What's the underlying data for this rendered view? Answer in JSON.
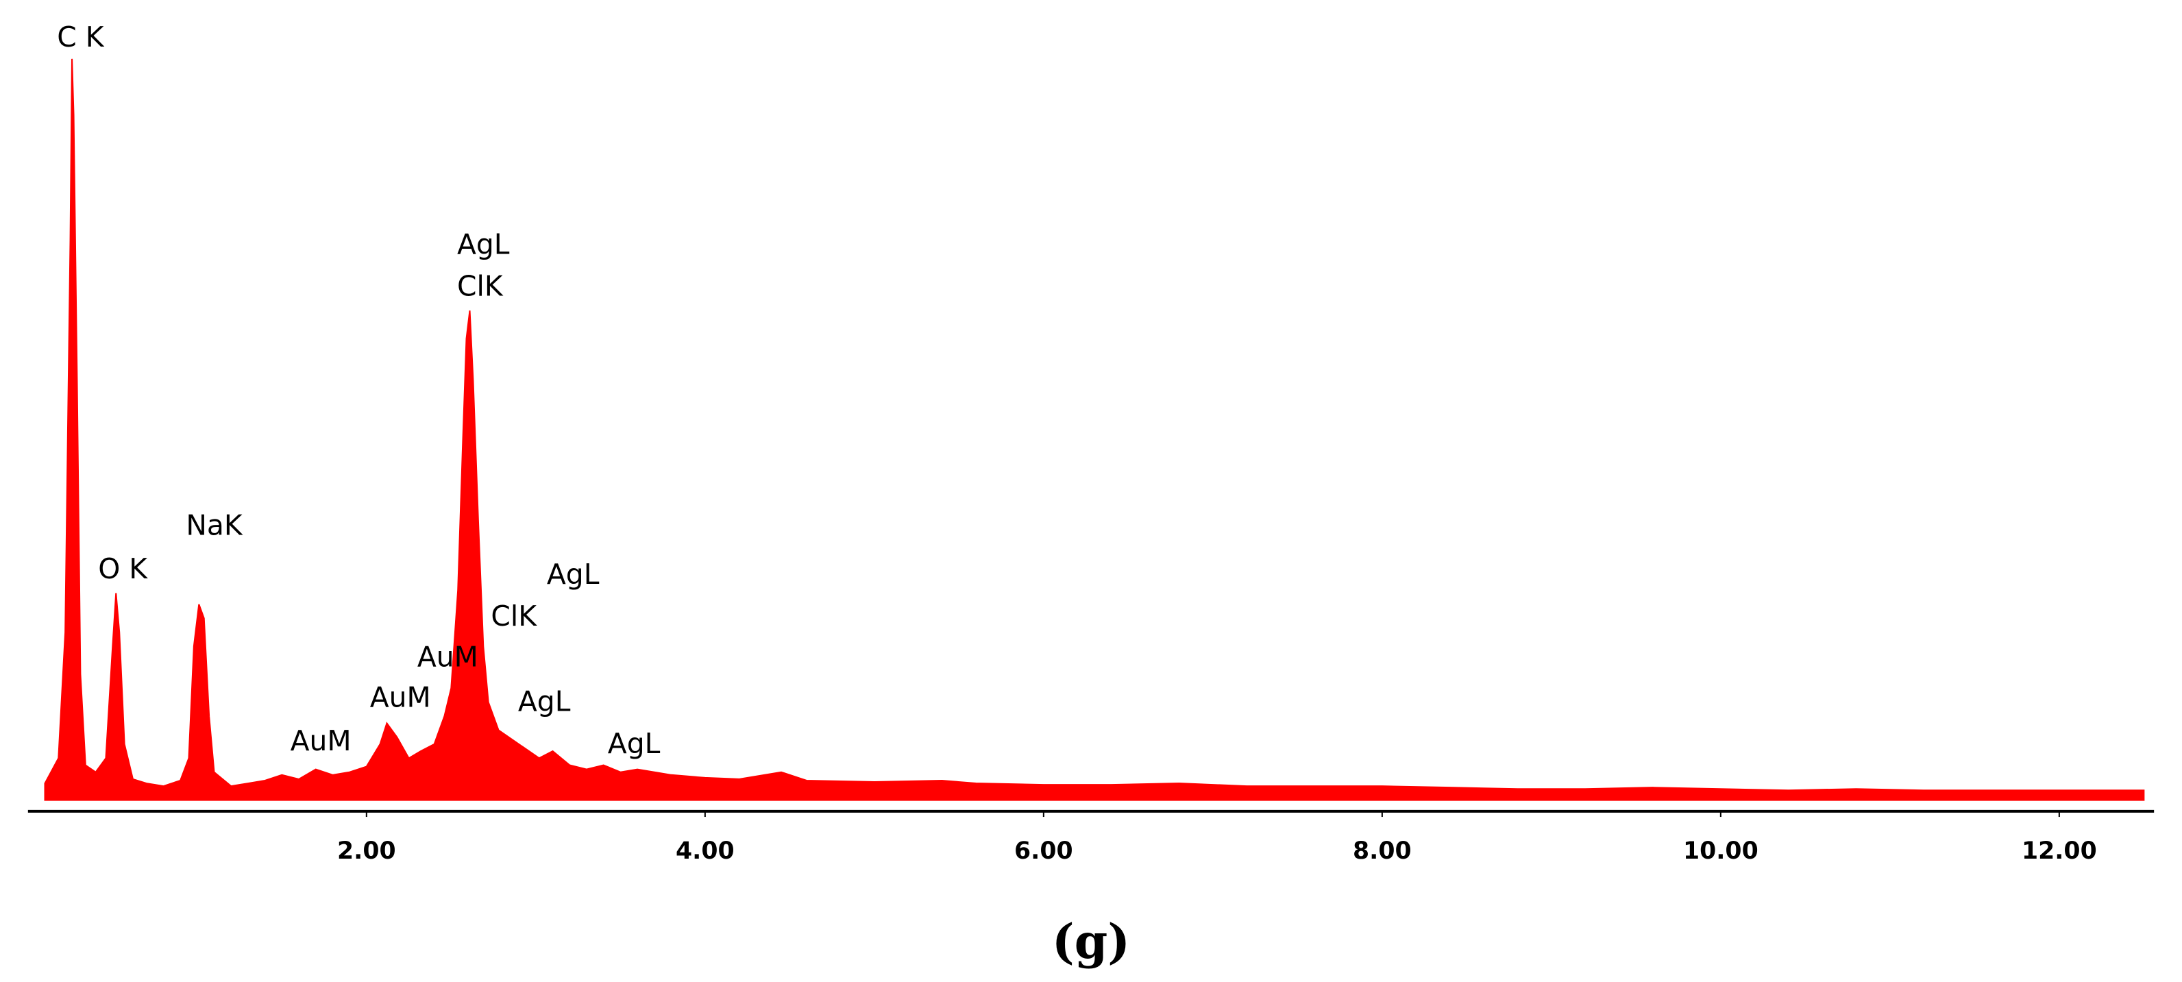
{
  "chart_data": {
    "type": "area",
    "caption": "(g)",
    "x": [
      0.1,
      0.18,
      0.22,
      0.25,
      0.26,
      0.27,
      0.29,
      0.31,
      0.34,
      0.4,
      0.46,
      0.5,
      0.52,
      0.54,
      0.57,
      0.62,
      0.7,
      0.8,
      0.9,
      0.95,
      0.98,
      1.01,
      1.04,
      1.07,
      1.1,
      1.2,
      1.3,
      1.4,
      1.5,
      1.6,
      1.7,
      1.8,
      1.9,
      2.0,
      2.08,
      2.12,
      2.18,
      2.25,
      2.32,
      2.4,
      2.46,
      2.5,
      2.54,
      2.57,
      2.59,
      2.61,
      2.63,
      2.66,
      2.69,
      2.72,
      2.78,
      2.84,
      2.9,
      2.96,
      3.02,
      3.1,
      3.2,
      3.3,
      3.4,
      3.5,
      3.6,
      3.7,
      3.8,
      4.0,
      4.2,
      4.45,
      4.6,
      5.0,
      5.4,
      5.6,
      6.0,
      6.4,
      6.8,
      7.2,
      7.6,
      8.0,
      8.4,
      8.8,
      9.2,
      9.6,
      10.0,
      10.4,
      10.8,
      11.2,
      11.6,
      12.0,
      12.5
    ],
    "series": [
      {
        "color": "#ff0000",
        "values": [
          12,
          30,
          120,
          400,
          530,
          490,
          300,
          90,
          25,
          20,
          30,
          110,
          148,
          120,
          40,
          15,
          12,
          10,
          14,
          30,
          110,
          140,
          130,
          60,
          20,
          10,
          12,
          14,
          18,
          15,
          22,
          18,
          20,
          24,
          40,
          55,
          45,
          30,
          35,
          40,
          60,
          80,
          150,
          260,
          330,
          350,
          300,
          200,
          110,
          70,
          50,
          45,
          40,
          35,
          30,
          35,
          25,
          22,
          25,
          20,
          22,
          20,
          18,
          16,
          15,
          20,
          14,
          13,
          14,
          12,
          11,
          11,
          12,
          10,
          10,
          10,
          9,
          8,
          8,
          9,
          8,
          7,
          8,
          7,
          7,
          7,
          7
        ]
      }
    ],
    "xlim": [
      0,
      12.56
    ],
    "ylim": [
      0,
      560
    ],
    "xticks": [
      {
        "value": 2,
        "label": "2.00"
      },
      {
        "value": 4,
        "label": "4.00"
      },
      {
        "value": 6,
        "label": "6.00"
      },
      {
        "value": 8,
        "label": "8.00"
      },
      {
        "value": 10,
        "label": "10.00"
      },
      {
        "value": 12,
        "label": "12.00"
      }
    ],
    "grid": false,
    "annotations": [
      {
        "text": "C K",
        "x": 0.31,
        "y": 544
      },
      {
        "text": "O K",
        "x": 0.56,
        "y": 164
      },
      {
        "text": "NaK",
        "x": 1.1,
        "y": 195
      },
      {
        "text": "AgL",
        "x": 2.69,
        "y": 396
      },
      {
        "text": "ClK",
        "x": 2.67,
        "y": 366
      },
      {
        "text": "AgL",
        "x": 3.22,
        "y": 160
      },
      {
        "text": "ClK",
        "x": 2.87,
        "y": 130
      },
      {
        "text": "AuM",
        "x": 2.48,
        "y": 101
      },
      {
        "text": "AuM",
        "x": 2.2,
        "y": 72
      },
      {
        "text": "AuM",
        "x": 1.73,
        "y": 41
      },
      {
        "text": "AgL",
        "x": 3.05,
        "y": 69
      },
      {
        "text": "AgL",
        "x": 3.58,
        "y": 39
      }
    ]
  }
}
